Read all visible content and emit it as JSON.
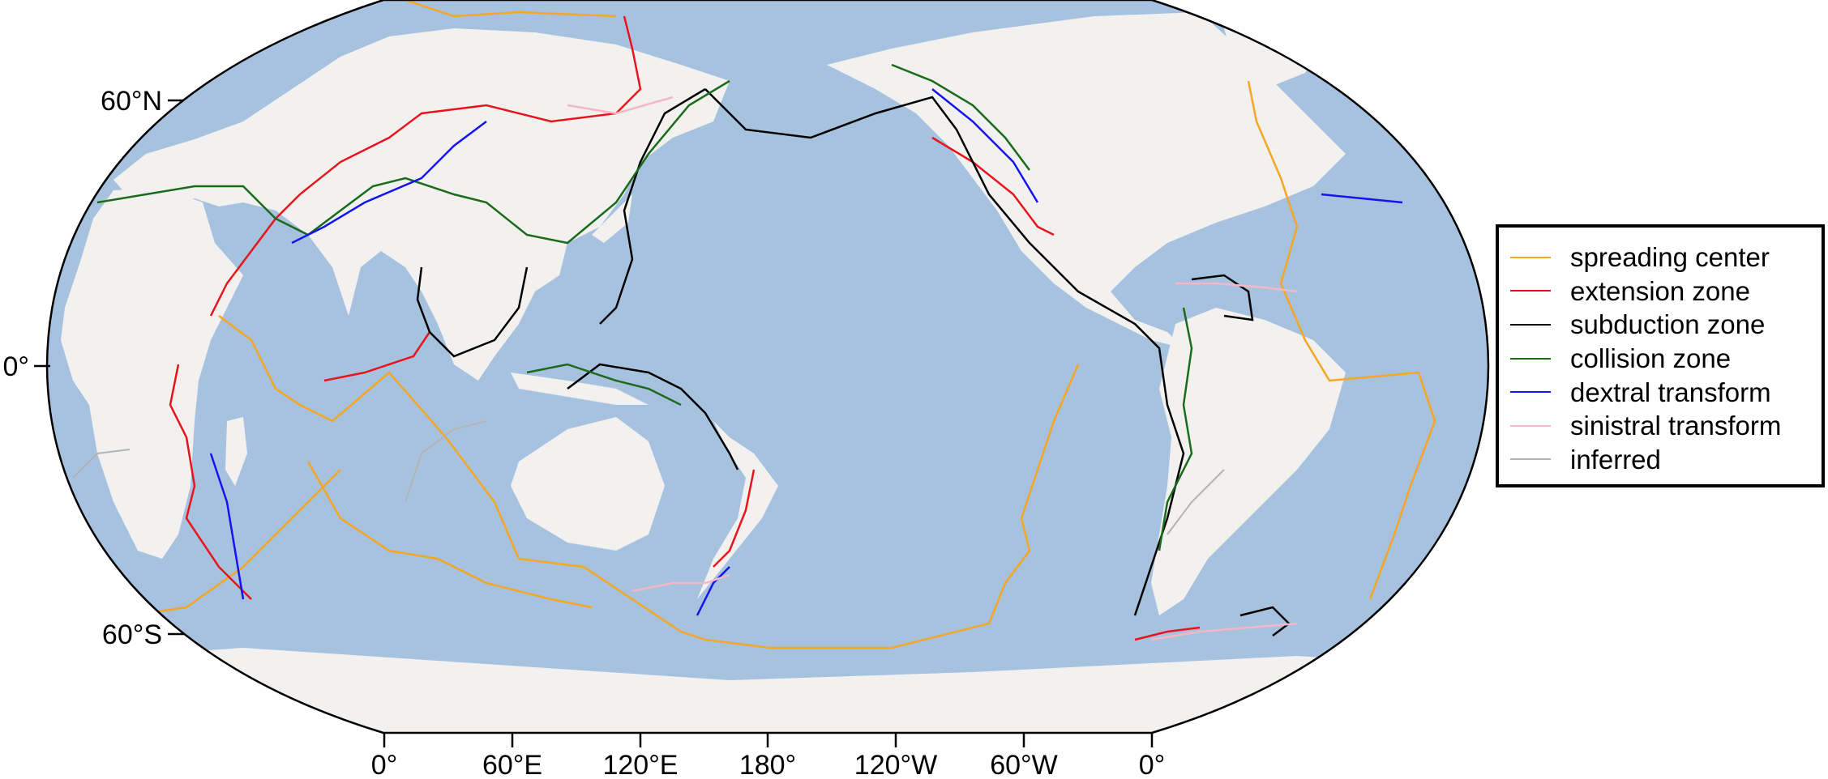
{
  "colors": {
    "ocean": "#a7c2df",
    "land": "#f2f1ef",
    "frame": "#000000"
  },
  "map": {
    "lat_labels": [
      "60°N",
      "0°",
      "60°S"
    ],
    "lon_labels": [
      "0°",
      "60°E",
      "120°E",
      "180°",
      "120°W",
      "60°W",
      "0°"
    ]
  },
  "legend": {
    "items": [
      {
        "label": "spreading center",
        "color": "#f5a623"
      },
      {
        "label": "extension zone",
        "color": "#e8141c"
      },
      {
        "label": "subduction zone",
        "color": "#000000"
      },
      {
        "label": "collision zone",
        "color": "#1a6b1a"
      },
      {
        "label": "dextral transform",
        "color": "#1414f0"
      },
      {
        "label": "sinistral transform",
        "color": "#f5b6c6"
      },
      {
        "label": "inferred",
        "color": "#b3b3b3"
      }
    ]
  }
}
